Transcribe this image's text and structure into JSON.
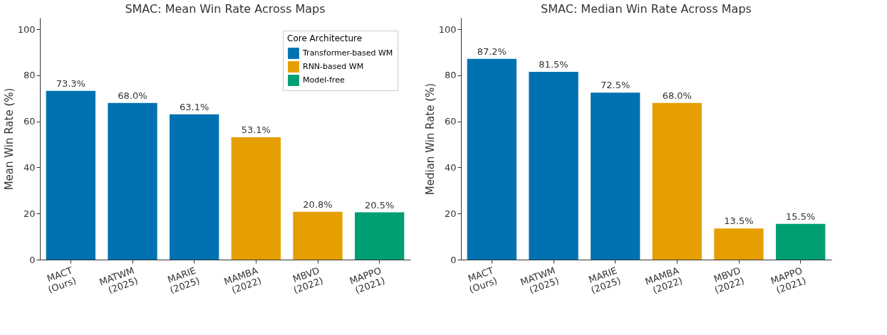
{
  "chart_data": [
    {
      "type": "bar",
      "title": "SMAC: Mean Win Rate Across Maps",
      "ylabel": "Mean Win Rate (%)",
      "categories": [
        "MACT\n(Ours)",
        "MATWM\n(2025)",
        "MARIE\n(2025)",
        "MAMBA\n(2022)",
        "MBVD\n(2022)",
        "MAPPO\n(2021)"
      ],
      "legend": "top right",
      "legend_title": "Core Architecture",
      "ylim": [
        0,
        105
      ],
      "yticks": [
        0,
        20,
        40,
        60,
        80,
        100
      ],
      "grid": false,
      "series": [
        {
          "name": "Transformer-based WM",
          "color": "#0072b2",
          "values": [
            73.3,
            68.0,
            63.1,
            null,
            null,
            null
          ],
          "value_labels": [
            "73.3%",
            "68.0%",
            "63.1%",
            null,
            null,
            null
          ]
        },
        {
          "name": "RNN-based WM",
          "color": "#e69f00",
          "values": [
            null,
            null,
            null,
            53.1,
            20.8,
            null
          ],
          "value_labels": [
            null,
            null,
            null,
            "53.1%",
            "20.8%",
            null
          ]
        },
        {
          "name": "Model-free",
          "color": "#009e73",
          "values": [
            null,
            null,
            null,
            null,
            null,
            20.5
          ],
          "value_labels": [
            null,
            null,
            null,
            null,
            null,
            "20.5%"
          ]
        }
      ]
    },
    {
      "type": "bar",
      "title": "SMAC: Median Win Rate Across Maps",
      "ylabel": "Median Win Rate (%)",
      "categories": [
        "MACT\n(Ours)",
        "MATWM\n(2025)",
        "MARIE\n(2025)",
        "MAMBA\n(2022)",
        "MBVD\n(2022)",
        "MAPPO\n(2021)"
      ],
      "ylim": [
        0,
        105
      ],
      "yticks": [
        0,
        20,
        40,
        60,
        80,
        100
      ],
      "grid": false,
      "series": [
        {
          "color": "#0072b2",
          "values": [
            87.2,
            81.5,
            72.5,
            null,
            null,
            null
          ],
          "value_labels": [
            "87.2%",
            "81.5%",
            "72.5%",
            null,
            null,
            null
          ]
        },
        {
          "color": "#e69f00",
          "values": [
            null,
            null,
            null,
            68.0,
            13.5,
            null
          ],
          "value_labels": [
            null,
            null,
            null,
            "68.0%",
            "13.5%",
            null
          ]
        },
        {
          "color": "#009e73",
          "values": [
            null,
            null,
            null,
            null,
            null,
            15.5
          ],
          "value_labels": [
            null,
            null,
            null,
            null,
            null,
            "15.5%"
          ]
        }
      ]
    }
  ]
}
